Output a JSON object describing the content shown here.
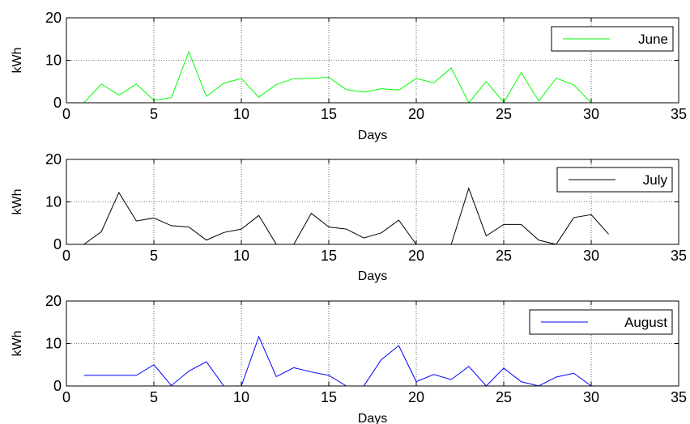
{
  "chart_data": [
    {
      "type": "line",
      "xlabel": "Days",
      "ylabel": "kWh",
      "xlim": [
        0,
        35
      ],
      "ylim": [
        0,
        20
      ],
      "xticks": [
        "0",
        "5",
        "10",
        "15",
        "20",
        "25",
        "30",
        "35"
      ],
      "yticks": [
        "0",
        "10",
        "20"
      ],
      "grid": "on",
      "legend_position": "top-right",
      "series": [
        {
          "name": "June",
          "color": "#00ff00",
          "x": [
            1,
            2,
            3,
            4,
            5,
            6,
            7,
            8,
            9,
            10,
            11,
            12,
            13,
            14,
            15,
            16,
            17,
            18,
            19,
            20,
            21,
            22,
            23,
            24,
            25,
            26,
            27,
            28,
            29,
            30,
            31
          ],
          "y": [
            0,
            4.4,
            1.8,
            4.4,
            0.6,
            1.2,
            12,
            1.5,
            4.6,
            5.7,
            1.3,
            4.3,
            5.7,
            5.7,
            6,
            3.1,
            2.5,
            3.3,
            3,
            5.7,
            4.7,
            8.2,
            0,
            5,
            0.1,
            7.1,
            0.4,
            5.8,
            4.2,
            0,
            0
          ]
        }
      ]
    },
    {
      "type": "line",
      "xlabel": "Days",
      "ylabel": "kWh",
      "xlim": [
        0,
        35
      ],
      "ylim": [
        0,
        20
      ],
      "xticks": [
        "0",
        "5",
        "10",
        "15",
        "20",
        "25",
        "30",
        "35"
      ],
      "yticks": [
        "0",
        "10",
        "20"
      ],
      "grid": "on",
      "legend_position": "top-right",
      "series": [
        {
          "name": "July",
          "color": "#000000",
          "x": [
            1,
            2,
            3,
            4,
            5,
            6,
            7,
            8,
            9,
            10,
            11,
            12,
            13,
            14,
            15,
            16,
            17,
            18,
            19,
            20,
            21,
            22,
            23,
            24,
            25,
            26,
            27,
            28,
            29,
            30,
            31
          ],
          "y": [
            0,
            3,
            12.2,
            5.5,
            6.2,
            4.4,
            4.1,
            1,
            2.8,
            3.6,
            6.8,
            0,
            0,
            7.3,
            4.1,
            3.6,
            1.5,
            2.7,
            5.7,
            0,
            0,
            0,
            13.2,
            2,
            4.7,
            4.7,
            1,
            0,
            6.3,
            7,
            2.4
          ]
        }
      ]
    },
    {
      "type": "line",
      "xlabel": "Days",
      "ylabel": "kWh",
      "xlim": [
        0,
        35
      ],
      "ylim": [
        0,
        20
      ],
      "xticks": [
        "0",
        "5",
        "10",
        "15",
        "20",
        "25",
        "30",
        "35"
      ],
      "yticks": [
        "0",
        "10",
        "20"
      ],
      "grid": "on",
      "legend_position": "top-right",
      "series": [
        {
          "name": "August",
          "color": "#0000ff",
          "x": [
            1,
            2,
            3,
            4,
            5,
            6,
            7,
            8,
            9,
            10,
            11,
            12,
            13,
            14,
            15,
            16,
            17,
            18,
            19,
            20,
            21,
            22,
            23,
            24,
            25,
            26,
            27,
            28,
            29,
            30,
            31
          ],
          "y": [
            2.5,
            2.5,
            2.5,
            2.5,
            5,
            0.1,
            3.5,
            5.7,
            0,
            0,
            11.6,
            2.2,
            4.3,
            3.3,
            2.5,
            0,
            0,
            6.2,
            9.5,
            1,
            2.7,
            1.5,
            4.6,
            0,
            4.2,
            1,
            0,
            2.1,
            3,
            0,
            0
          ]
        }
      ]
    }
  ]
}
